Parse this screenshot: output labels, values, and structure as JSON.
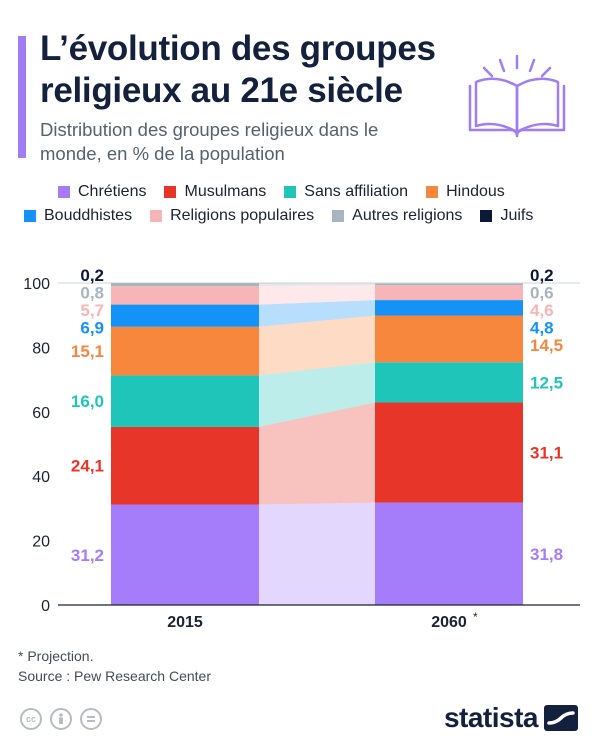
{
  "header": {
    "title": "L’évolution des groupes religieux au 21e siècle",
    "subtitle": "Distribution des groupes religieux dans le monde, en % de la population"
  },
  "legend": {
    "row1": [
      {
        "label": "Chrétiens",
        "color": "#a57cfa"
      },
      {
        "label": "Musulmans",
        "color": "#e8352a"
      },
      {
        "label": "Sans affiliation",
        "color": "#20c5b9"
      },
      {
        "label": "Hindous",
        "color": "#f7873c"
      }
    ],
    "row2": [
      {
        "label": "Bouddhistes",
        "color": "#1492f7"
      },
      {
        "label": "Religions populaires",
        "color": "#f7b5b7"
      },
      {
        "label": "Autres religions",
        "color": "#a8b4be"
      },
      {
        "label": "Juifs",
        "color": "#0c1a37"
      }
    ]
  },
  "chart_data": {
    "type": "bar",
    "stacked": true,
    "categories": [
      "2015",
      "2060"
    ],
    "category_markers": [
      "",
      "*"
    ],
    "yticks": [
      "0",
      "20",
      "40",
      "60",
      "80",
      "100"
    ],
    "ylim": [
      0,
      100
    ],
    "series": [
      {
        "name": "Chrétiens",
        "color": "#a57cfa",
        "values": [
          31.2,
          31.8
        ],
        "labels": [
          "31,2",
          "31,8"
        ]
      },
      {
        "name": "Musulmans",
        "color": "#e8352a",
        "values": [
          24.1,
          31.1
        ],
        "labels": [
          "24,1",
          "31,1"
        ]
      },
      {
        "name": "Sans affiliation",
        "color": "#20c5b9",
        "values": [
          16.0,
          12.5
        ],
        "labels": [
          "16,0",
          "12,5"
        ]
      },
      {
        "name": "Hindous",
        "color": "#f7873c",
        "values": [
          15.1,
          14.5
        ],
        "labels": [
          "15,1",
          "14,5"
        ]
      },
      {
        "name": "Bouddhistes",
        "color": "#1492f7",
        "values": [
          6.9,
          4.8
        ],
        "labels": [
          "6,9",
          "4,8"
        ]
      },
      {
        "name": "Religions populaires",
        "color": "#f7b5b7",
        "values": [
          5.7,
          4.6
        ],
        "labels": [
          "5,7",
          "4,6"
        ]
      },
      {
        "name": "Autres religions",
        "color": "#a8b4be",
        "values": [
          0.8,
          0.6
        ],
        "labels": [
          "0,8",
          "0,6"
        ]
      },
      {
        "name": "Juifs",
        "color": "#0c1a37",
        "values": [
          0.2,
          0.2
        ],
        "labels": [
          "0,2",
          "0,2"
        ]
      }
    ]
  },
  "footer": {
    "note": "* Projection.",
    "source": "Source : Pew Research Center",
    "brand": "statista"
  }
}
